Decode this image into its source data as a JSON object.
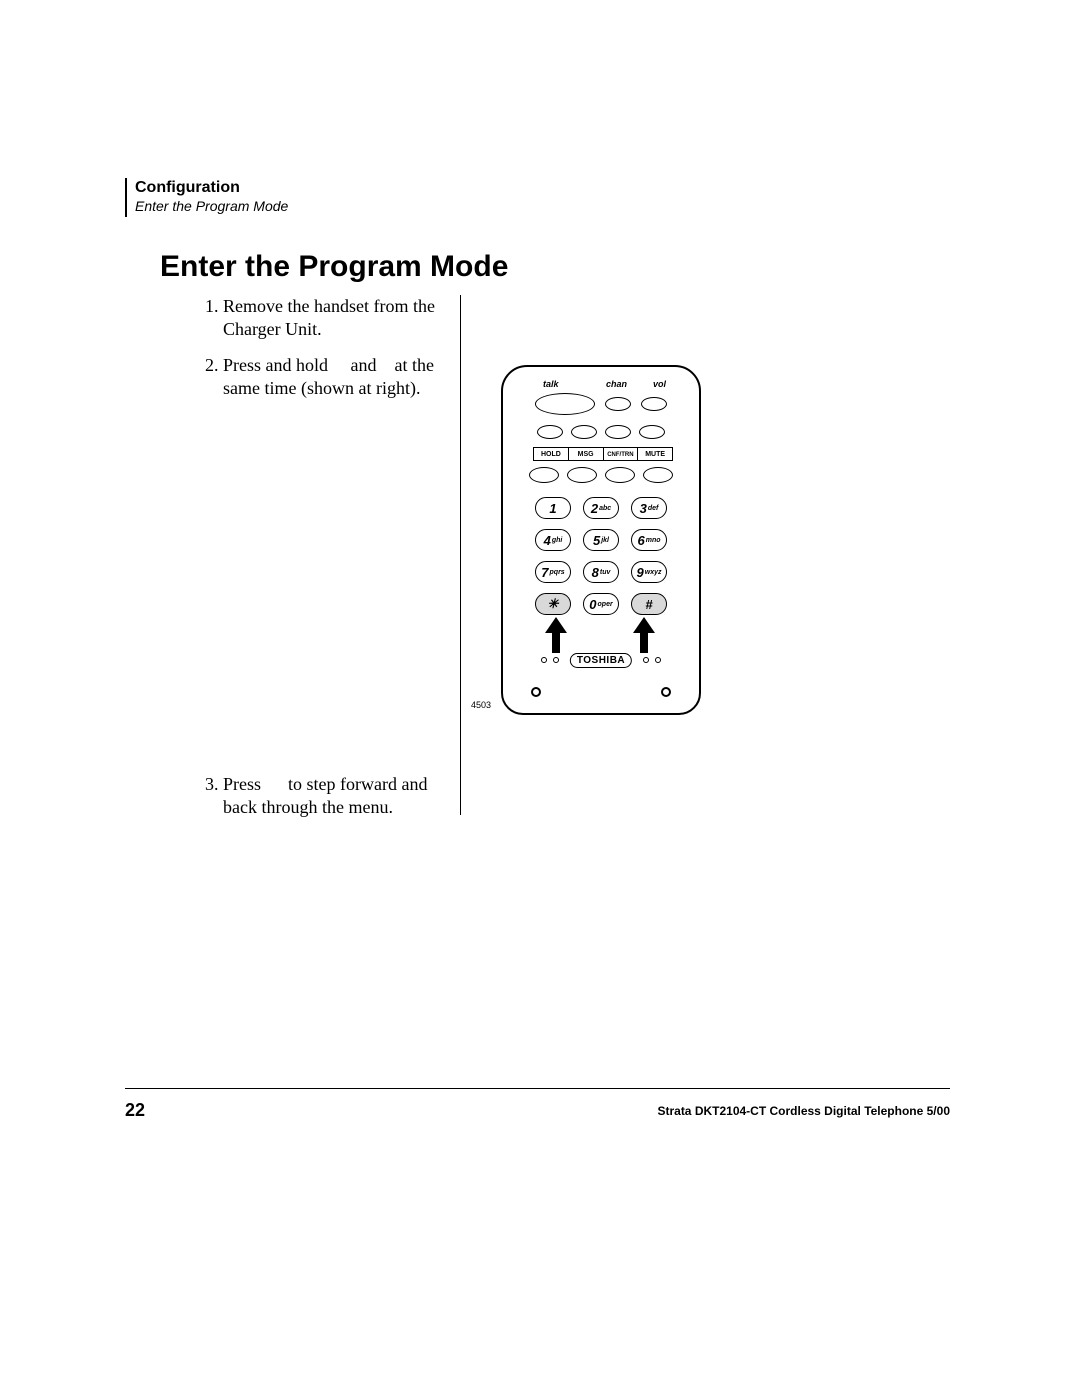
{
  "header": {
    "section": "Configuration",
    "sub": "Enter the Program Mode"
  },
  "title": "Enter the Program Mode",
  "steps": {
    "s1": "Remove the handset from the Charger Unit.",
    "s2": "Press and hold     and    at the same time (shown at right).",
    "s3": "Press      to step forward and back through the menu."
  },
  "phone": {
    "top_labels": {
      "talk": "talk",
      "chan": "chan",
      "vol": "vol"
    },
    "fn_labels": [
      "HOLD",
      "MSG",
      "CNF/TRN",
      "MUTE"
    ],
    "keypad": [
      [
        {
          "n": "1",
          "l": ""
        },
        {
          "n": "2",
          "l": "abc"
        },
        {
          "n": "3",
          "l": "def"
        }
      ],
      [
        {
          "n": "4",
          "l": "ghi"
        },
        {
          "n": "5",
          "l": "jkl"
        },
        {
          "n": "6",
          "l": "mno"
        }
      ],
      [
        {
          "n": "7",
          "l": "pqrs"
        },
        {
          "n": "8",
          "l": "tuv"
        },
        {
          "n": "9",
          "l": "wxyz"
        }
      ],
      [
        {
          "n": "✳",
          "l": "",
          "shaded": true
        },
        {
          "n": "0",
          "l": "oper"
        },
        {
          "n": "#",
          "l": "",
          "shaded": true
        }
      ]
    ],
    "brand": "TOSHIBA",
    "figure_number": "4503"
  },
  "footer": {
    "page": "22",
    "doc": "Strata DKT2104-CT Cordless Digital Telephone   5/00"
  },
  "colors": {
    "text": "#000000",
    "bg": "#ffffff",
    "shade": "#d9d9d9"
  }
}
